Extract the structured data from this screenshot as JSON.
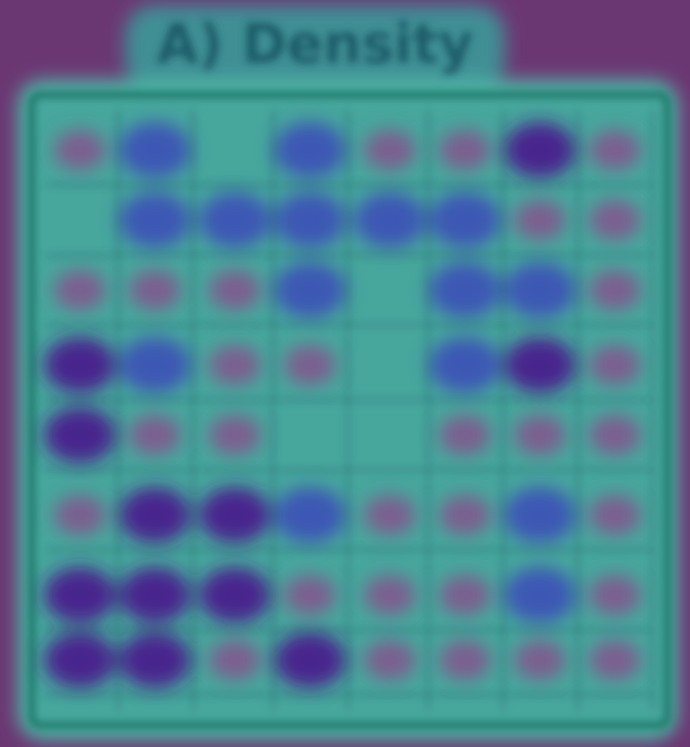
{
  "header": {
    "title": "A) Density"
  }
}
